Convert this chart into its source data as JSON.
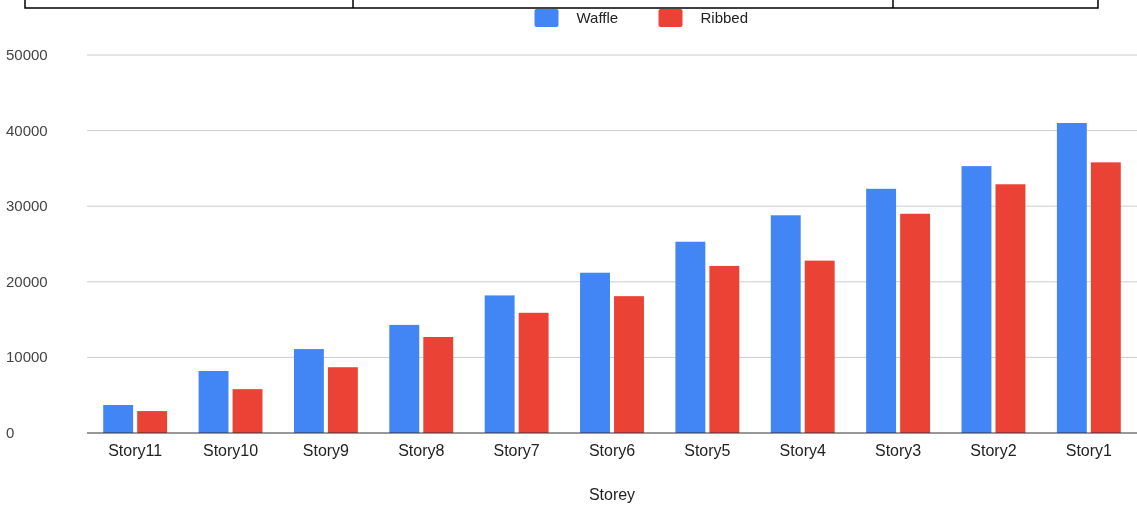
{
  "chart_data": {
    "type": "bar",
    "xlabel": "Storey",
    "categories": [
      "Story11",
      "Story10",
      "Story9",
      "Story8",
      "Story7",
      "Story6",
      "Story5",
      "Story4",
      "Story3",
      "Story2",
      "Story1"
    ],
    "series": [
      {
        "name": "Waffle",
        "color": "#4285f4",
        "values": [
          3700,
          8200,
          11100,
          14300,
          18200,
          21200,
          25300,
          28800,
          32300,
          35300,
          41000
        ]
      },
      {
        "name": "Ribbed",
        "color": "#ea4335",
        "values": [
          2900,
          5800,
          8700,
          12700,
          15900,
          18100,
          22100,
          22800,
          29000,
          32900,
          35800
        ]
      }
    ],
    "ylim": [
      0,
      50000
    ],
    "yticks": [
      0,
      10000,
      20000,
      30000,
      40000,
      50000
    ],
    "grid": "y",
    "legend": "top"
  }
}
